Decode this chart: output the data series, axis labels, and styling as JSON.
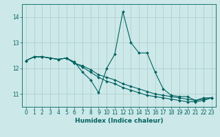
{
  "xlabel": "Humidex (Indice chaleur)",
  "x": [
    0,
    1,
    2,
    3,
    4,
    5,
    6,
    7,
    8,
    9,
    10,
    11,
    12,
    13,
    14,
    15,
    16,
    17,
    18,
    19,
    20,
    21,
    22,
    23
  ],
  "line1": [
    12.3,
    12.45,
    12.45,
    12.4,
    12.35,
    12.4,
    12.25,
    11.85,
    11.55,
    11.05,
    12.0,
    12.55,
    14.2,
    13.0,
    12.6,
    12.6,
    11.85,
    11.2,
    10.95,
    10.9,
    10.9,
    10.75,
    10.85,
    10.85
  ],
  "line2": [
    12.3,
    12.45,
    12.45,
    12.4,
    12.35,
    12.4,
    12.2,
    12.1,
    11.95,
    11.75,
    11.65,
    11.55,
    11.4,
    11.3,
    11.2,
    11.1,
    11.0,
    10.95,
    10.9,
    10.85,
    10.8,
    10.75,
    10.8,
    10.85
  ],
  "line3": [
    12.3,
    12.45,
    12.45,
    12.4,
    12.35,
    12.4,
    12.2,
    12.05,
    11.85,
    11.65,
    11.5,
    11.4,
    11.25,
    11.15,
    11.05,
    10.95,
    10.9,
    10.85,
    10.8,
    10.75,
    10.7,
    10.7,
    10.75,
    10.85
  ],
  "ylim": [
    10.5,
    14.5
  ],
  "yticks": [
    11,
    12,
    13,
    14
  ],
  "xlim": [
    -0.5,
    23.5
  ],
  "bg_color": "#cce8e8",
  "grid_color": "#aacccc",
  "line_color": "#006060",
  "marker": "D",
  "markersize": 2.0,
  "linewidth": 0.8,
  "label_fontsize": 6.5,
  "tick_fontsize": 5.5
}
